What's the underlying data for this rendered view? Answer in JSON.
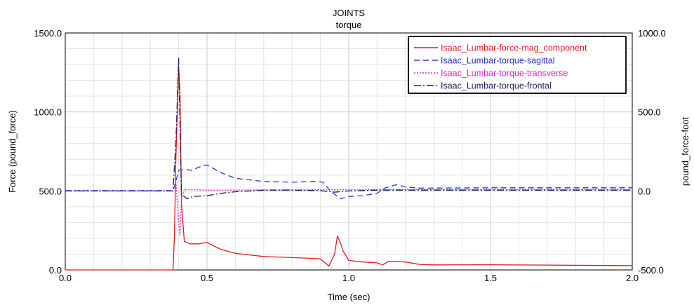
{
  "chart_data": {
    "type": "line",
    "title": "JOINTS",
    "subtitle": "torque",
    "xlabel": "Time (sec)",
    "ylabel_left": "Force (pound_force)",
    "ylabel_right": "pound_force-foot",
    "xlim": [
      0.0,
      2.0
    ],
    "ylim_left": [
      0,
      1500
    ],
    "ylim_right": [
      -500,
      1000
    ],
    "x_ticks": [
      "0.0",
      "0.5",
      "1.0",
      "1.5",
      "2.0"
    ],
    "x_tick_values": [
      0,
      0.5,
      1.0,
      1.5,
      2.0
    ],
    "y_left_ticks": [
      "0.0",
      "500.0",
      "1000.0",
      "1500.0"
    ],
    "y_left_tick_values": [
      0,
      500,
      1000,
      1500
    ],
    "y_right_ticks": [
      "-500.0",
      "0.0",
      "500.0",
      "1000.0"
    ],
    "y_right_tick_values": [
      -500,
      0,
      500,
      1000
    ],
    "grid": true,
    "legend_position": "top-right",
    "series": [
      {
        "name": "Isaac_Lumbar-force-mag_component",
        "axis": "left",
        "color": "#e0191e",
        "dash": "solid",
        "points": [
          [
            0,
            0
          ],
          [
            0.38,
            0
          ],
          [
            0.385,
            200
          ],
          [
            0.39,
            700
          ],
          [
            0.4,
            1280
          ],
          [
            0.405,
            1100
          ],
          [
            0.41,
            420
          ],
          [
            0.42,
            180
          ],
          [
            0.44,
            165
          ],
          [
            0.47,
            165
          ],
          [
            0.5,
            175
          ],
          [
            0.52,
            155
          ],
          [
            0.55,
            130
          ],
          [
            0.6,
            105
          ],
          [
            0.65,
            95
          ],
          [
            0.7,
            85
          ],
          [
            0.8,
            78
          ],
          [
            0.85,
            75
          ],
          [
            0.9,
            70
          ],
          [
            0.91,
            55
          ],
          [
            0.93,
            25
          ],
          [
            0.95,
            100
          ],
          [
            0.96,
            215
          ],
          [
            0.97,
            175
          ],
          [
            0.98,
            120
          ],
          [
            1.0,
            60
          ],
          [
            1.05,
            50
          ],
          [
            1.1,
            45
          ],
          [
            1.12,
            32
          ],
          [
            1.14,
            55
          ],
          [
            1.2,
            50
          ],
          [
            1.25,
            35
          ],
          [
            1.3,
            32
          ],
          [
            1.5,
            33
          ],
          [
            2.0,
            27
          ]
        ]
      },
      {
        "name": "Isaac_Lumbar-torque-sagittal",
        "axis": "right",
        "color": "#2b35c8",
        "dash": "8 5",
        "points": [
          [
            0,
            2
          ],
          [
            0.38,
            2
          ],
          [
            0.39,
            60
          ],
          [
            0.4,
            130
          ],
          [
            0.42,
            135
          ],
          [
            0.45,
            130
          ],
          [
            0.47,
            150
          ],
          [
            0.5,
            165
          ],
          [
            0.55,
            115
          ],
          [
            0.6,
            80
          ],
          [
            0.7,
            60
          ],
          [
            0.8,
            55
          ],
          [
            0.88,
            60
          ],
          [
            0.91,
            55
          ],
          [
            0.93,
            10
          ],
          [
            0.97,
            -50
          ],
          [
            1.0,
            -35
          ],
          [
            1.05,
            -30
          ],
          [
            1.1,
            -15
          ],
          [
            1.13,
            20
          ],
          [
            1.17,
            40
          ],
          [
            1.2,
            25
          ],
          [
            1.25,
            18
          ],
          [
            1.5,
            20
          ],
          [
            2.0,
            20
          ]
        ]
      },
      {
        "name": "Isaac_Lumbar-torque-transverse",
        "axis": "right",
        "color": "#e022c8",
        "dash": "2 2",
        "points": [
          [
            0,
            0
          ],
          [
            0.38,
            0
          ],
          [
            0.39,
            60
          ],
          [
            0.4,
            -200
          ],
          [
            0.405,
            -280
          ],
          [
            0.41,
            -50
          ],
          [
            0.42,
            10
          ],
          [
            0.5,
            5
          ],
          [
            1.0,
            8
          ],
          [
            1.5,
            10
          ],
          [
            2.0,
            10
          ]
        ]
      },
      {
        "name": "Isaac_Lumbar-torque-frontal",
        "axis": "right",
        "color": "#1e1e64",
        "dash": "10 3 2 3",
        "points": [
          [
            0,
            0
          ],
          [
            0.38,
            0
          ],
          [
            0.39,
            300
          ],
          [
            0.4,
            840
          ],
          [
            0.405,
            400
          ],
          [
            0.41,
            -20
          ],
          [
            0.43,
            -50
          ],
          [
            0.45,
            -35
          ],
          [
            0.5,
            -30
          ],
          [
            0.55,
            -15
          ],
          [
            0.6,
            -5
          ],
          [
            0.7,
            5
          ],
          [
            0.8,
            5
          ],
          [
            0.9,
            2
          ],
          [
            0.95,
            -8
          ],
          [
            1.0,
            0
          ],
          [
            1.1,
            5
          ],
          [
            1.5,
            5
          ],
          [
            2.0,
            5
          ]
        ]
      }
    ]
  }
}
